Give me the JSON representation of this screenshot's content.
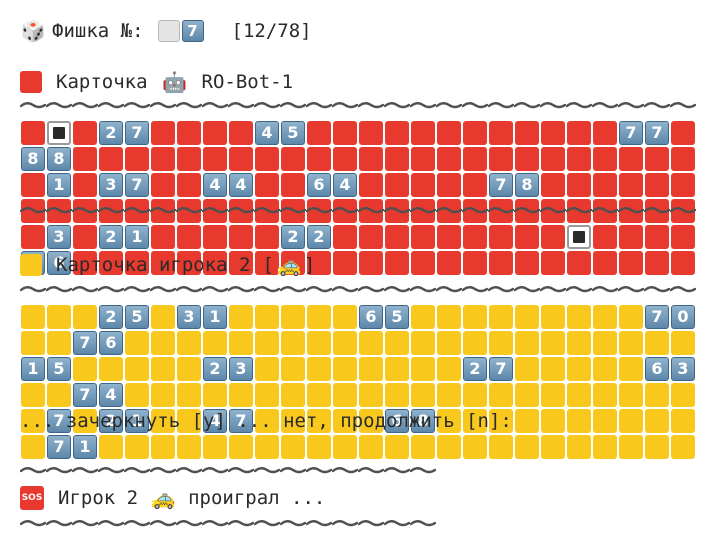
{
  "header": {
    "icon": "game-die-icon",
    "label": "Фишка №:",
    "chip_number": "7",
    "progress": "[12/78]"
  },
  "card_robot": {
    "icon": "red-square-icon",
    "title": "Карточка",
    "player_icon": "robot-face-icon",
    "player_name": "RO-Bot-1",
    "rows": [
      [
        "",
        "X",
        "",
        "27",
        "",
        "",
        "",
        "",
        "45",
        "",
        "",
        "",
        "",
        "",
        "",
        "",
        "",
        "",
        "",
        "",
        "",
        "77",
        "",
        "88"
      ],
      [
        "",
        "1",
        "",
        "37",
        "",
        "",
        "44",
        "",
        "",
        "64",
        "",
        "",
        "",
        "",
        "",
        "78",
        "",
        "",
        "",
        "",
        "",
        "",
        "",
        "",
        "",
        ""
      ],
      [
        "",
        "3",
        "",
        "21",
        "",
        "",
        "",
        "",
        "",
        "22",
        "",
        "",
        "",
        "",
        "",
        "",
        "",
        "",
        "",
        "X",
        "",
        "",
        "",
        "",
        "86"
      ]
    ]
  },
  "card_player2": {
    "icon": "yellow-square-icon",
    "title": "Карточка игрока 2",
    "player_icon": "taxi-icon",
    "rows": [
      [
        "",
        "",
        "",
        "25",
        "",
        "31",
        "",
        "",
        "",
        "",
        "",
        "65",
        "",
        "",
        "",
        "",
        "",
        "",
        "",
        "",
        "",
        "70",
        "",
        "",
        "76"
      ],
      [
        "15",
        "",
        "",
        "",
        "",
        "",
        "23",
        "",
        "",
        "",
        "",
        "",
        "",
        "",
        "",
        "27",
        "",
        "",
        "",
        "",
        "",
        "63",
        "",
        "",
        "74"
      ],
      [
        "",
        "7",
        "",
        "21",
        "",
        "",
        "47",
        "",
        "",
        "",
        "",
        "",
        "68",
        "",
        "",
        "",
        "",
        "",
        "",
        "",
        "",
        "",
        "",
        "",
        "71"
      ]
    ]
  },
  "prompt": "... зачеркнуть [y] ... нет, продолжить [n]:",
  "result": {
    "icon": "sos-icon",
    "icon_text": "SOS",
    "text_before": "Игрок 2",
    "player_icon": "taxi-icon",
    "text_after": "проиграл ..."
  },
  "colors": {
    "red_cell": "#e8392e",
    "yellow_cell": "#f8c81c",
    "number_cell": "#6a91b2",
    "wavy_line": "#505050"
  }
}
